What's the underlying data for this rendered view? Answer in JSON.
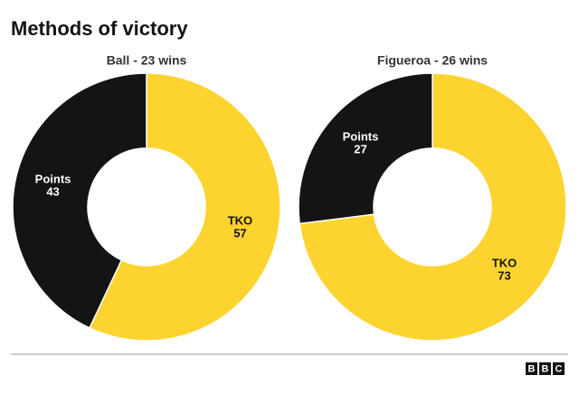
{
  "title": "Methods of victory",
  "chart_data": [
    {
      "type": "pie",
      "title": "Ball - 23 wins",
      "categories": [
        "TKO",
        "Points"
      ],
      "values": [
        57,
        43
      ],
      "colors": [
        "#fdd330",
        "#141414"
      ],
      "label_colors": [
        "#141414",
        "#ffffff"
      ]
    },
    {
      "type": "pie",
      "title": "Figueroa - 26 wins",
      "categories": [
        "TKO",
        "Points"
      ],
      "values": [
        73,
        27
      ],
      "colors": [
        "#fdd330",
        "#141414"
      ],
      "label_colors": [
        "#141414",
        "#ffffff"
      ]
    }
  ],
  "logo": [
    "B",
    "B",
    "C"
  ]
}
